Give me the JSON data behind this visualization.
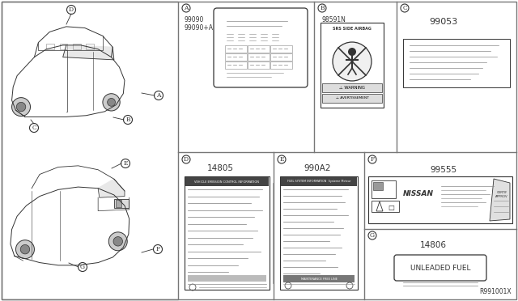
{
  "bg_color": "#ffffff",
  "line_color": "#333333",
  "medium_gray": "#888888",
  "dark_gray": "#555555",
  "ref_code": "R991001X",
  "part_A1": "99090",
  "part_A2": "99090+A",
  "part_B": "98591N",
  "part_C": "99053",
  "part_D": "14805",
  "part_E": "990A2",
  "part_F": "99555",
  "part_G": "14806",
  "label_G": "UNLEADED FUEL",
  "header_D": "VEHICLE EMISSION CONTROL INFORMATION",
  "header_E": "FUEL SYSTEM INFORMATION",
  "airbag_text": "SRS SIDE AIRBAG",
  "warn1": "WARNING",
  "warn2": "AVERTISSEMENT"
}
